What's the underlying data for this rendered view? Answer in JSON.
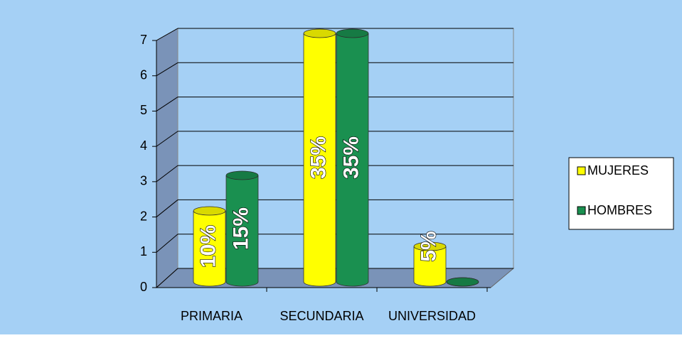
{
  "chart_data": {
    "type": "cylinder3d",
    "categories": [
      "PRIMARIA",
      "SECUNDARIA",
      "UNIVERSIDAD"
    ],
    "series": [
      {
        "name": "MUJERES",
        "color": "#ffff00",
        "values": [
          2,
          7,
          1
        ],
        "percent_labels": [
          "10%",
          "35%",
          "5%"
        ]
      },
      {
        "name": "HOMBRES",
        "color": "#1a9050",
        "values": [
          3,
          7,
          0
        ],
        "percent_labels": [
          "15%",
          "35%",
          null
        ]
      }
    ],
    "ylim": [
      0,
      7
    ],
    "yticks": [
      0,
      1,
      2,
      3,
      4,
      5,
      6,
      7
    ],
    "grid": true,
    "legend": "right"
  }
}
